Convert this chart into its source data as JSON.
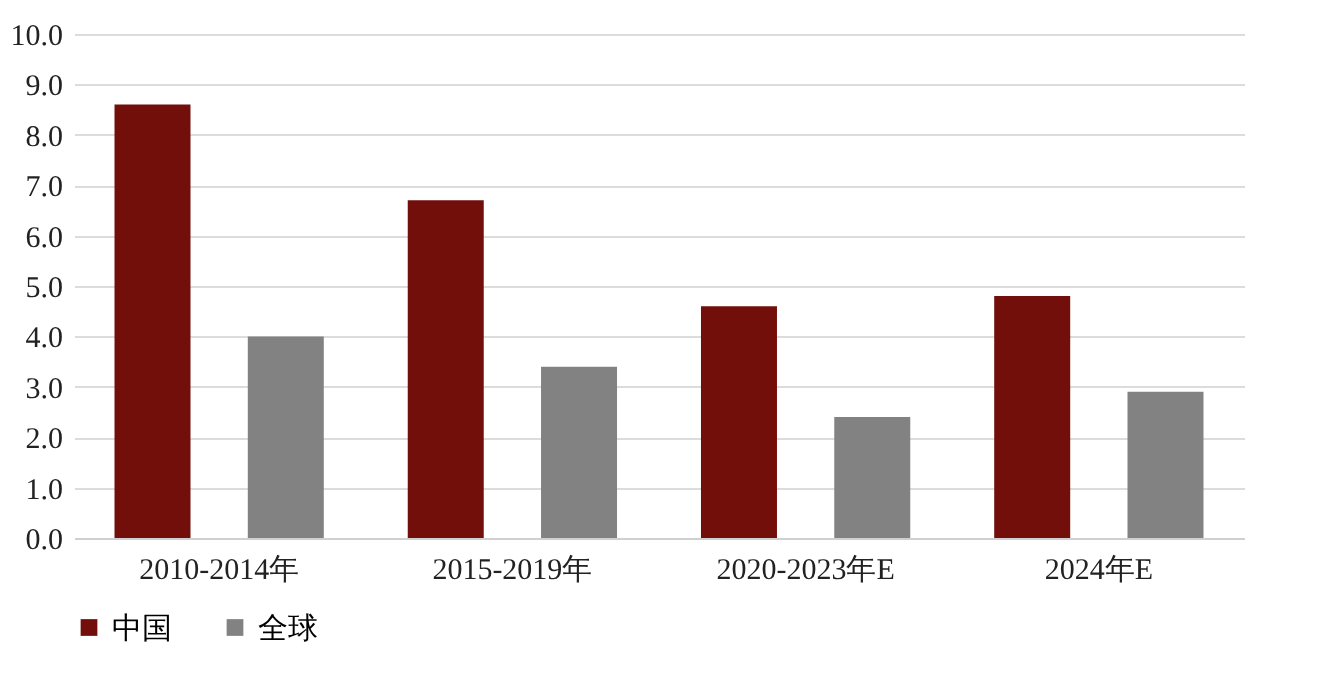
{
  "chart_data": {
    "type": "bar",
    "categories": [
      "2010-2014年",
      "2015-2019年",
      "2020-2023年E",
      "2024年E"
    ],
    "series": [
      {
        "name": "中国",
        "color": "#720f0a",
        "values": [
          8.6,
          6.7,
          4.6,
          4.8
        ]
      },
      {
        "name": "全球",
        "color": "#828282",
        "values": [
          4.0,
          3.4,
          2.4,
          2.9
        ]
      }
    ],
    "ylim": [
      0,
      10
    ],
    "yticks": [
      {
        "value": 0,
        "label": "0.0"
      },
      {
        "value": 1,
        "label": "1.0"
      },
      {
        "value": 2,
        "label": "2.0"
      },
      {
        "value": 3,
        "label": "3.0"
      },
      {
        "value": 4,
        "label": "4.0"
      },
      {
        "value": 5,
        "label": "5.0"
      },
      {
        "value": 6,
        "label": "6.0"
      },
      {
        "value": 7,
        "label": "7.0"
      },
      {
        "value": 8,
        "label": "8.0"
      },
      {
        "value": 9,
        "label": "9.0"
      },
      {
        "value": 10,
        "label": "10.0"
      }
    ],
    "grid": "y",
    "legend": "bottom"
  }
}
